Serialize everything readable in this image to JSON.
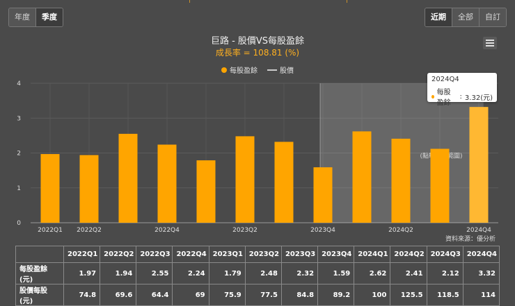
{
  "toolbar": {
    "left_tabs": [
      {
        "label": "年度",
        "active": false
      },
      {
        "label": "季度",
        "active": true
      }
    ],
    "right_tabs": [
      {
        "label": "近期",
        "active": true
      },
      {
        "label": "全部",
        "active": false
      },
      {
        "label": "自訂",
        "active": false
      }
    ]
  },
  "menu_icon": "hamburger-menu-icon",
  "tooltip": {
    "title": "2024Q4",
    "series_label": "每股盈餘",
    "value_text": "3.32(元)"
  },
  "source_note": "資料來源：優分析",
  "colors": {
    "bar": "#ffa500",
    "bar_highlight": "#ffb832",
    "background": "#4a4a4a",
    "subtitle": "#ffb020"
  },
  "chart_data": {
    "type": "bar",
    "title": "巨路 - 股價VS每股盈餘",
    "subtitle": "成長率 = 108.81 (%)",
    "categories": [
      "2022Q1",
      "2022Q2",
      "2022Q3",
      "2022Q4",
      "2023Q1",
      "2023Q2",
      "2023Q3",
      "2023Q4",
      "2024Q1",
      "2024Q2",
      "2024Q3",
      "2024Q4"
    ],
    "x_tick_labels": [
      "2022Q1",
      "2022Q2",
      "",
      "2022Q4",
      "",
      "2023Q2",
      "",
      "2023Q4",
      "",
      "2024Q2",
      "",
      "2024Q4"
    ],
    "series": [
      {
        "name": "每股盈餘",
        "type": "bar",
        "values": [
          1.97,
          1.94,
          2.55,
          2.24,
          1.79,
          2.48,
          2.32,
          1.59,
          2.62,
          2.41,
          2.12,
          3.32
        ]
      },
      {
        "name": "股價",
        "type": "line",
        "values": [
          74.8,
          69.6,
          64.4,
          69,
          75.9,
          77.5,
          84.8,
          89.2,
          100,
          125.5,
          118.5,
          114
        ]
      }
    ],
    "y_ticks": [
      0,
      1,
      2,
      3,
      4
    ],
    "ylim": [
      0,
      4
    ],
    "grid": true,
    "legend_position": "top-center",
    "highlighted_category": "2024Q4",
    "shaded_range": [
      "2023Q4",
      "2024Q4"
    ],
    "shaded_label": "(點擊重置範圍)"
  },
  "table": {
    "columns": [
      "",
      "2022Q1",
      "2022Q2",
      "2022Q3",
      "2022Q4",
      "2023Q1",
      "2023Q2",
      "2023Q3",
      "2023Q4",
      "2024Q1",
      "2024Q2",
      "2024Q3",
      "2024Q4"
    ],
    "rows": [
      {
        "label": "每股盈餘(元)",
        "values": [
          "1.97",
          "1.94",
          "2.55",
          "2.24",
          "1.79",
          "2.48",
          "2.32",
          "1.59",
          "2.62",
          "2.41",
          "2.12",
          "3.32"
        ]
      },
      {
        "label": "股價每股(元)",
        "values": [
          "74.8",
          "69.6",
          "64.4",
          "69",
          "75.9",
          "77.5",
          "84.8",
          "89.2",
          "100",
          "125.5",
          "118.5",
          "114"
        ]
      }
    ]
  }
}
